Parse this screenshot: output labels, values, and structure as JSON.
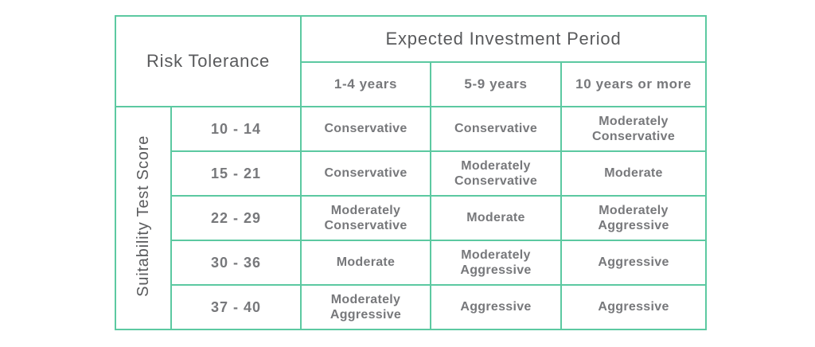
{
  "chart_data": {
    "type": "table",
    "corner_header": "Risk Tolerance",
    "column_group_header": "Expected Investment Period",
    "row_group_header": "Suitability Test Score",
    "columns": [
      "1-4 years",
      "5-9 years",
      "10 years or more"
    ],
    "rows": [
      "10 - 14",
      "15 - 21",
      "22 - 29",
      "30 - 36",
      "37 - 40"
    ],
    "values": [
      [
        "Conservative",
        "Conservative",
        "Moderately Conservative"
      ],
      [
        "Conservative",
        "Moderately Conservative",
        "Moderate"
      ],
      [
        "Moderately Conservative",
        "Moderate",
        "Moderately Aggressive"
      ],
      [
        "Moderate",
        "Moderately Aggressive",
        "Aggressive"
      ],
      [
        "Moderately Aggressive",
        "Aggressive",
        "Aggressive"
      ]
    ],
    "layout_hints": {
      "grid": "on",
      "corner_spans": "2 columns x 2 rows",
      "row_group_orientation": "vertical bottom-to-top"
    }
  },
  "colors": {
    "border": "#5CC9A1",
    "header_text": "#595A5C",
    "body_text": "#77787B",
    "background": "#FFFFFF"
  }
}
